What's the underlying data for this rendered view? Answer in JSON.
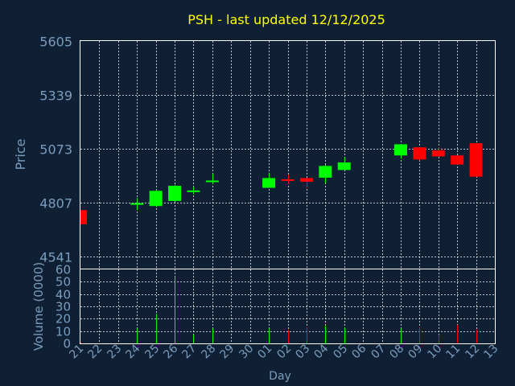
{
  "title": "PSH - last updated 12/12/2025",
  "colors": {
    "background": "#0f2035",
    "text": "#7a9dbd",
    "title": "#ffff00",
    "up": "#00ff00",
    "down": "#ff0000",
    "grid": "#ffffff"
  },
  "chart_data": [
    {
      "type": "candlestick",
      "ylabel": "Price",
      "xlabel": "Day",
      "y_ticks": [
        "4541",
        "4807",
        "5073",
        "5339",
        "5605"
      ],
      "ylim": [
        4481,
        5605
      ],
      "grid": true,
      "x_ticks": [
        "21",
        "22",
        "23",
        "24",
        "25",
        "26",
        "27",
        "28",
        "29",
        "30",
        "01",
        "02",
        "03",
        "04",
        "05",
        "06",
        "07",
        "08",
        "09",
        "10",
        "11",
        "12",
        "13"
      ],
      "candles": [
        {
          "x": 21,
          "open": 4770,
          "close": 4700,
          "high": 4770,
          "low": 4700,
          "dir": "down"
        },
        {
          "x": 24,
          "open": 4800,
          "close": 4800,
          "high": 4830,
          "low": 4770,
          "dir": "up"
        },
        {
          "x": 25,
          "open": 4790,
          "close": 4865,
          "high": 4870,
          "low": 4785,
          "dir": "up"
        },
        {
          "x": 26,
          "open": 4815,
          "close": 4890,
          "high": 4895,
          "low": 4810,
          "dir": "up"
        },
        {
          "x": 27,
          "open": 4858,
          "close": 4863,
          "high": 4885,
          "low": 4848,
          "dir": "up"
        },
        {
          "x": 28,
          "open": 4905,
          "close": 4912,
          "high": 4950,
          "low": 4900,
          "dir": "up"
        },
        {
          "x": 1,
          "open": 4880,
          "close": 4928,
          "high": 4955,
          "low": 4880,
          "dir": "up"
        },
        {
          "x": 2,
          "open": 4918,
          "close": 4912,
          "high": 4945,
          "low": 4900,
          "dir": "down"
        },
        {
          "x": 3,
          "open": 4928,
          "close": 4910,
          "high": 4930,
          "low": 4880,
          "dir": "down"
        },
        {
          "x": 4,
          "open": 4930,
          "close": 4988,
          "high": 4995,
          "low": 4905,
          "dir": "up"
        },
        {
          "x": 5,
          "open": 4968,
          "close": 5005,
          "high": 5030,
          "low": 4968,
          "dir": "up"
        },
        {
          "x": 8,
          "open": 5040,
          "close": 5095,
          "high": 5095,
          "low": 5025,
          "dir": "up"
        },
        {
          "x": 9,
          "open": 5080,
          "close": 5020,
          "high": 5080,
          "low": 5015,
          "dir": "down"
        },
        {
          "x": 10,
          "open": 5065,
          "close": 5035,
          "high": 5080,
          "low": 5035,
          "dir": "down"
        },
        {
          "x": 11,
          "open": 5040,
          "close": 4995,
          "high": 5040,
          "low": 4995,
          "dir": "down"
        },
        {
          "x": 12,
          "open": 5100,
          "close": 4935,
          "high": 5100,
          "low": 4935,
          "dir": "down"
        }
      ]
    },
    {
      "type": "bar",
      "ylabel": "Volume (0000)",
      "y_ticks": [
        "0",
        "10",
        "20",
        "30",
        "40",
        "50",
        "60"
      ],
      "ylim": [
        0,
        60
      ],
      "grid": true,
      "bars": [
        {
          "x": 21,
          "value": 1,
          "dir": "down"
        },
        {
          "x": 24,
          "value": 12,
          "dir": "up"
        },
        {
          "x": 25,
          "value": 24,
          "dir": "up"
        },
        {
          "x": 26,
          "value": 54,
          "dir": "up"
        },
        {
          "x": 27,
          "value": 7,
          "dir": "up"
        },
        {
          "x": 28,
          "value": 12,
          "dir": "up"
        },
        {
          "x": 1,
          "value": 12,
          "dir": "up"
        },
        {
          "x": 2,
          "value": 11,
          "dir": "down"
        },
        {
          "x": 3,
          "value": 13,
          "dir": "down"
        },
        {
          "x": 4,
          "value": 14,
          "dir": "up"
        },
        {
          "x": 5,
          "value": 13,
          "dir": "up"
        },
        {
          "x": 8,
          "value": 12,
          "dir": "up"
        },
        {
          "x": 9,
          "value": 13,
          "dir": "down"
        },
        {
          "x": 10,
          "value": 7,
          "dir": "down"
        },
        {
          "x": 11,
          "value": 15,
          "dir": "down"
        },
        {
          "x": 12,
          "value": 11,
          "dir": "down"
        }
      ]
    }
  ]
}
